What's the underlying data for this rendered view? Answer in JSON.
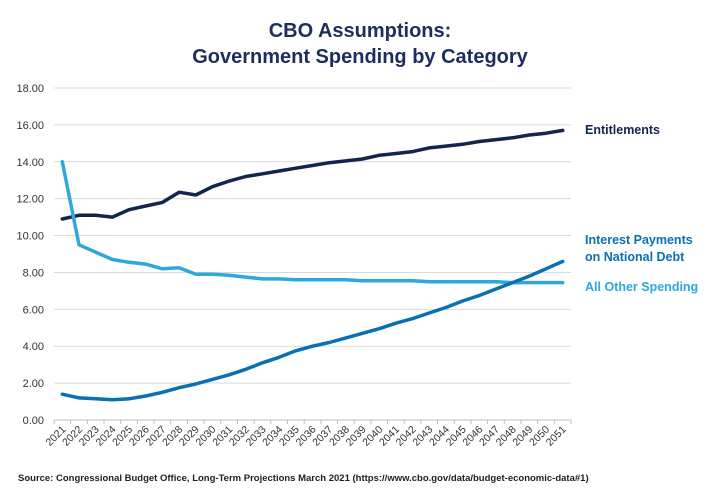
{
  "chart_data": {
    "type": "line",
    "title": "CBO Assumptions:\nGovernment Spending by Category",
    "title_lines": [
      "CBO Assumptions:",
      "Government Spending by Category"
    ],
    "xlabel": "",
    "ylabel": "",
    "ylim": [
      0,
      18
    ],
    "yticks": [
      "0.00",
      "2.00",
      "4.00",
      "6.00",
      "8.00",
      "10.00",
      "12.00",
      "14.00",
      "16.00",
      "18.00"
    ],
    "grid": true,
    "legend": "right, labels at line ends",
    "categories": [
      "2021",
      "2022",
      "2023",
      "2024",
      "2025",
      "2026",
      "2027",
      "2028",
      "2029",
      "2030",
      "2031",
      "2032",
      "2033",
      "2034",
      "2035",
      "2036",
      "2037",
      "2038",
      "2039",
      "2040",
      "2041",
      "2042",
      "2043",
      "2044",
      "2045",
      "2046",
      "2047",
      "2048",
      "2049",
      "2050",
      "2051"
    ],
    "series": [
      {
        "name": "Entitlements",
        "color": "#13254b",
        "values": [
          10.9,
          11.1,
          11.1,
          11.0,
          11.4,
          11.6,
          11.8,
          12.35,
          12.2,
          12.65,
          12.95,
          13.2,
          13.35,
          13.5,
          13.65,
          13.8,
          13.95,
          14.05,
          14.15,
          14.35,
          14.45,
          14.55,
          14.75,
          14.85,
          14.95,
          15.1,
          15.2,
          15.3,
          15.45,
          15.55,
          15.7
        ]
      },
      {
        "name": "Interest Payments on National Debt",
        "name_lines": [
          "Interest Payments",
          "on National Debt"
        ],
        "color": "#0b6fb3",
        "values": [
          1.4,
          1.2,
          1.15,
          1.1,
          1.15,
          1.3,
          1.5,
          1.75,
          1.95,
          2.2,
          2.45,
          2.75,
          3.1,
          3.4,
          3.75,
          4.0,
          4.2,
          4.45,
          4.7,
          4.95,
          5.25,
          5.5,
          5.8,
          6.1,
          6.45,
          6.75,
          7.1,
          7.45,
          7.8,
          8.2,
          8.6
        ]
      },
      {
        "name": "All Other Spending",
        "color": "#2ea7dc",
        "values": [
          14.0,
          9.5,
          9.1,
          8.7,
          8.55,
          8.45,
          8.2,
          8.25,
          7.9,
          7.9,
          7.85,
          7.75,
          7.65,
          7.65,
          7.6,
          7.6,
          7.6,
          7.6,
          7.55,
          7.55,
          7.55,
          7.55,
          7.5,
          7.5,
          7.5,
          7.5,
          7.5,
          7.45,
          7.45,
          7.45,
          7.45
        ]
      }
    ]
  },
  "source": "Source: Congressional Budget Office, Long-Term Projections March 2021 (https://www.cbo.gov/data/budget-economic-data#1)"
}
